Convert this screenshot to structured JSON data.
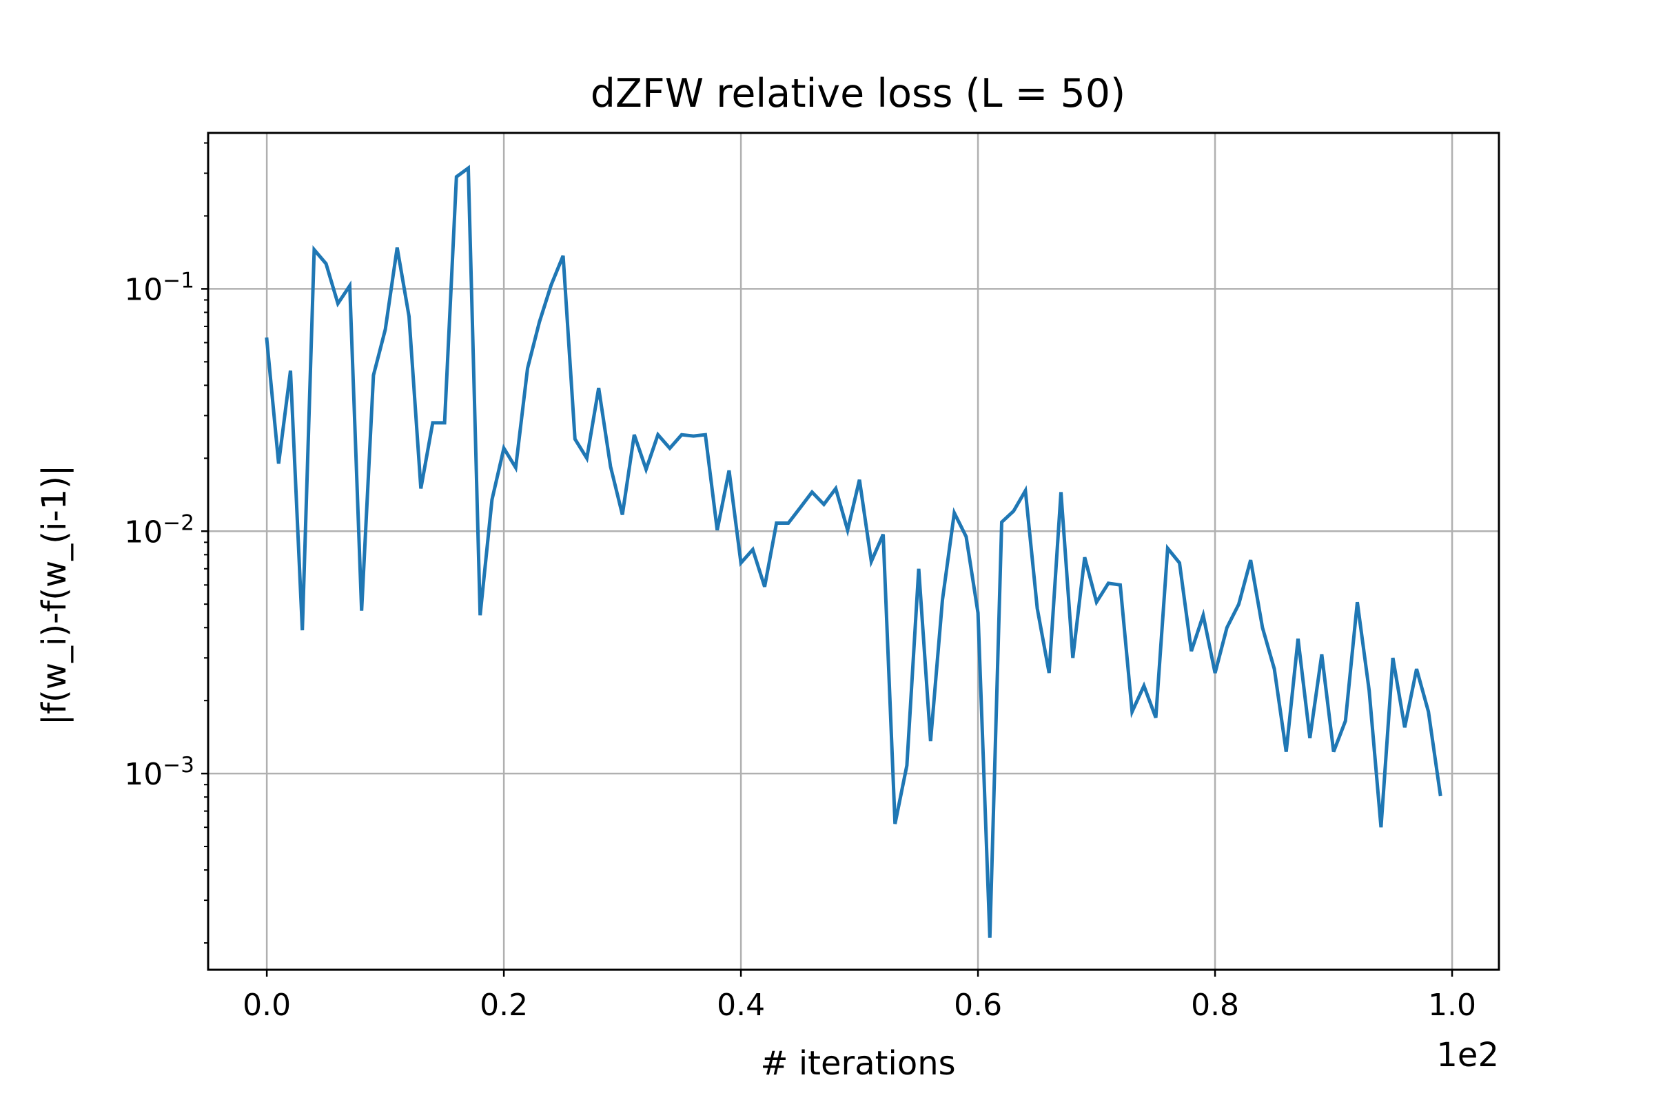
{
  "chart_data": {
    "type": "line",
    "title": "dZFW relative loss (L = 50)",
    "xlabel": "# iterations",
    "ylabel": "|f(w_i)-f(w_(i-1)|",
    "x_offset_text": "1e2",
    "x_scale_factor": 100,
    "xlim": [
      -0.0495,
      1.0395
    ],
    "ylim": [
      0.000155,
      0.44
    ],
    "yscale": "log",
    "grid": true,
    "x_ticks": [
      0.0,
      0.2,
      0.4,
      0.6,
      0.8,
      1.0
    ],
    "x_tick_labels": [
      "0.0",
      "0.2",
      "0.4",
      "0.6",
      "0.8",
      "1.0"
    ],
    "y_ticks": [
      {
        "value": 0.1,
        "base": "10",
        "exp": "−1"
      },
      {
        "value": 0.01,
        "base": "10",
        "exp": "−2"
      },
      {
        "value": 0.001,
        "base": "10",
        "exp": "−3"
      }
    ],
    "series": [
      {
        "color": "#1f77b4",
        "x": [
          0.0,
          0.01,
          0.02,
          0.03,
          0.04,
          0.05,
          0.06,
          0.07,
          0.08,
          0.09,
          0.1,
          0.11,
          0.12,
          0.13,
          0.14,
          0.15,
          0.16,
          0.17,
          0.18,
          0.19,
          0.2,
          0.21,
          0.22,
          0.23,
          0.24,
          0.25,
          0.26,
          0.27,
          0.28,
          0.29,
          0.3,
          0.31,
          0.32,
          0.33,
          0.34,
          0.35,
          0.36,
          0.37,
          0.38,
          0.39,
          0.4,
          0.41,
          0.42,
          0.43,
          0.44,
          0.45,
          0.46,
          0.47,
          0.48,
          0.49,
          0.5,
          0.51,
          0.52,
          0.53,
          0.54,
          0.55,
          0.56,
          0.57,
          0.58,
          0.59,
          0.6,
          0.61,
          0.62,
          0.63,
          0.64,
          0.65,
          0.66,
          0.67,
          0.68,
          0.69,
          0.7,
          0.71,
          0.72,
          0.73,
          0.74,
          0.75,
          0.76,
          0.77,
          0.78,
          0.79,
          0.8,
          0.81,
          0.82,
          0.83,
          0.84,
          0.85,
          0.86,
          0.87,
          0.88,
          0.89,
          0.9,
          0.91,
          0.92,
          0.93,
          0.94,
          0.95,
          0.96,
          0.97,
          0.98,
          0.99
        ],
        "y": [
          0.062,
          0.019,
          0.046,
          0.0039,
          0.145,
          0.127,
          0.087,
          0.103,
          0.0047,
          0.044,
          0.068,
          0.148,
          0.077,
          0.015,
          0.028,
          0.028,
          0.29,
          0.315,
          0.0045,
          0.0135,
          0.022,
          0.0183,
          0.047,
          0.073,
          0.104,
          0.137,
          0.024,
          0.02,
          0.039,
          0.0185,
          0.0117,
          0.025,
          0.018,
          0.025,
          0.022,
          0.025,
          0.0247,
          0.025,
          0.0101,
          0.0178,
          0.0074,
          0.0084,
          0.0059,
          0.0108,
          0.0108,
          0.0125,
          0.0145,
          0.0129,
          0.015,
          0.0101,
          0.0163,
          0.0075,
          0.0097,
          0.00062,
          0.00108,
          0.007,
          0.00136,
          0.0052,
          0.0119,
          0.0095,
          0.0046,
          0.00021,
          0.0109,
          0.0121,
          0.0147,
          0.0048,
          0.0026,
          0.0145,
          0.003,
          0.0078,
          0.0051,
          0.0061,
          0.006,
          0.0018,
          0.0023,
          0.0017,
          0.0085,
          0.0074,
          0.0032,
          0.0045,
          0.0026,
          0.004,
          0.005,
          0.0076,
          0.004,
          0.0027,
          0.00123,
          0.0036,
          0.0014,
          0.0031,
          0.00123,
          0.00165,
          0.0051,
          0.0022,
          0.0006,
          0.003,
          0.00155,
          0.0027,
          0.0018,
          0.00082
        ]
      }
    ]
  }
}
